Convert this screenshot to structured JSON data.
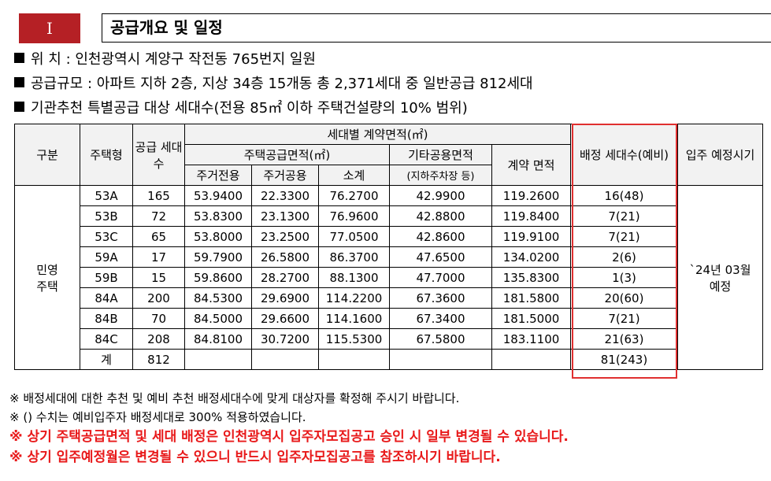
{
  "header": {
    "section_number": "I",
    "title": "공급개요 및 일정"
  },
  "bullets": [
    "위    치 : 인천광역시 계양구 작전동 765번지 일원",
    "공급규모 : 아파트 지하 2층, 지상 34층 15개동 총 2,371세대 중 일반공급 812세대",
    "기관추천 특별공급 대상 세대수(전용 85㎡ 이하 주택건설량의 10% 범위)"
  ],
  "table": {
    "headers": {
      "category": "구분",
      "type": "주택형",
      "supply": "공급 세대수",
      "contract_area": "세대별 계약면적(㎡)",
      "housing_supply_area": "주택공급면적(㎡)",
      "exclusive": "주거전용",
      "common": "주거공용",
      "subtotal": "소계",
      "other_common": "기타공용면적",
      "other_common_note": "(지하주차장 등)",
      "contract": "계약 면적",
      "allocation": "배정 세대수(예비)",
      "move_in": "입주 예정시기"
    },
    "category_value": "민영 주택",
    "move_in_value": "`24년 03월 예정",
    "rows": [
      {
        "type": "53A",
        "supply": "165",
        "exclusive": "53.9400",
        "common": "22.3300",
        "subtotal": "76.2700",
        "other": "42.9900",
        "contract": "119.2600",
        "allocation": "16(48)"
      },
      {
        "type": "53B",
        "supply": "72",
        "exclusive": "53.8300",
        "common": "23.1300",
        "subtotal": "76.9600",
        "other": "42.8800",
        "contract": "119.8400",
        "allocation": "7(21)"
      },
      {
        "type": "53C",
        "supply": "65",
        "exclusive": "53.8000",
        "common": "23.2500",
        "subtotal": "77.0500",
        "other": "42.8600",
        "contract": "119.9100",
        "allocation": "7(21)"
      },
      {
        "type": "59A",
        "supply": "17",
        "exclusive": "59.7900",
        "common": "26.5800",
        "subtotal": "86.3700",
        "other": "47.6500",
        "contract": "134.0200",
        "allocation": "2(6)"
      },
      {
        "type": "59B",
        "supply": "15",
        "exclusive": "59.8600",
        "common": "28.2700",
        "subtotal": "88.1300",
        "other": "47.7000",
        "contract": "135.8300",
        "allocation": "1(3)"
      },
      {
        "type": "84A",
        "supply": "200",
        "exclusive": "84.5300",
        "common": "29.6900",
        "subtotal": "114.2200",
        "other": "67.3600",
        "contract": "181.5800",
        "allocation": "20(60)"
      },
      {
        "type": "84B",
        "supply": "70",
        "exclusive": "84.5000",
        "common": "29.6600",
        "subtotal": "114.1600",
        "other": "67.3400",
        "contract": "181.5000",
        "allocation": "7(21)"
      },
      {
        "type": "84C",
        "supply": "208",
        "exclusive": "84.8100",
        "common": "30.7200",
        "subtotal": "115.5300",
        "other": "67.5800",
        "contract": "183.1100",
        "allocation": "21(63)"
      }
    ],
    "total": {
      "label": "계",
      "supply": "812",
      "allocation": "81(243)"
    }
  },
  "notes": {
    "black": [
      "※ 배정세대에 대한 추천 및 예비 추천 배정세대수에 맞게 대상자를 확정해 주시기 바랍니다.",
      "※ () 수치는 예비입주자 배정세대로 300% 적용하였습니다."
    ],
    "red": [
      "※ 상기 주택공급면적 및 세대 배정은 인천광역시 입주자모집공고 승인 시 일부 변경될 수 있습니다.",
      "※ 상기 입주예정월은 변경될 수 있으니 반드시 입주자모집공고를 참조하시기 바랍니다."
    ]
  },
  "colors": {
    "accent_red": "#b52025",
    "highlight_border": "#e03030",
    "note_red": "#e8191a"
  }
}
